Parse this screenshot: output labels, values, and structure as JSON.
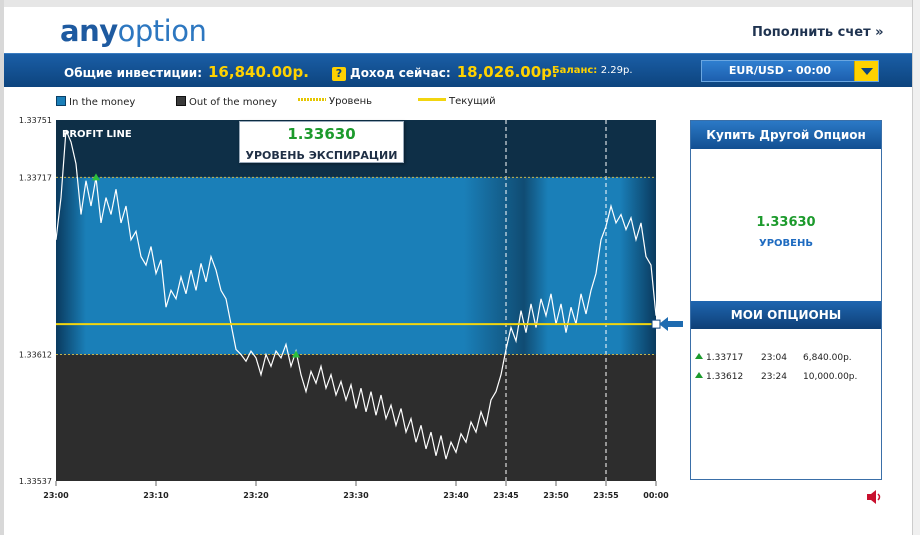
{
  "header": {
    "logo_main": "any",
    "logo_accent": "option",
    "deposit_link": "Пополнить счет »"
  },
  "infobar": {
    "investments_label": "Общие инвестиции:",
    "investments_value": "16,840.00р.",
    "income_label": "Доход сейчас:",
    "income_value": "18,026.00р.",
    "balance_label": "Баланс:",
    "balance_value": "2.29р.",
    "asset_select": "EUR/USD - 00:00"
  },
  "legend": {
    "in_money": "In the money",
    "out_money": "Out of the money",
    "level": "Уровень",
    "current": "Текущий"
  },
  "expiry": {
    "value": "1.33630",
    "label": "УРОВЕНЬ ЭКСПИРАЦИИ"
  },
  "panel": {
    "buy_button": "Купить Другой Опцион",
    "level_value": "1.33630",
    "level_label": "УРОВЕНЬ",
    "my_options_header": "МОИ ОПЦИОНЫ",
    "options": [
      {
        "level": "1.33717",
        "time": "23:04",
        "amount": "6,840.00р."
      },
      {
        "level": "1.33612",
        "time": "23:24",
        "amount": "10,000.00р."
      }
    ]
  },
  "colors": {
    "in_money": "#1a7fb8",
    "out_money": "#2d2d2d",
    "level_line": "#f2d50f",
    "accent_blue": "#124f91",
    "up_green": "#1c9a2c",
    "money_yellow": "#ffd200"
  },
  "chart_data": {
    "type": "line",
    "title": "PROFIT LINE",
    "ylim": [
      1.33537,
      1.33751
    ],
    "y_ticks": [
      "1.33751",
      "1.33717",
      "1.33612",
      "1.33537"
    ],
    "x_ticks": [
      "23:00",
      "23:10",
      "23:20",
      "23:30",
      "23:40",
      "23:45",
      "23:50",
      "23:55",
      "00:00"
    ],
    "current_level": 1.3363,
    "in_money_band": [
      1.33612,
      1.33717
    ],
    "entry_markers": [
      {
        "time": "23:04",
        "level": 1.33717
      },
      {
        "time": "23:24",
        "level": 1.33612
      }
    ],
    "vertical_markers": [
      "23:45",
      "23:55"
    ],
    "series": [
      {
        "x_minutes": [
          0,
          0.5,
          1,
          1.5,
          2,
          2.5,
          3,
          3.5,
          4,
          4.5,
          5,
          5.5,
          6,
          6.5,
          7,
          7.5,
          8,
          8.5,
          9,
          9.5,
          10,
          10.5,
          11,
          11.5,
          12,
          12.5,
          13,
          13.5,
          14,
          14.5,
          15,
          15.5,
          16,
          16.5,
          17,
          17.5,
          18,
          18.5,
          19,
          19.5,
          20,
          20.5,
          21,
          21.5,
          22,
          22.5,
          23,
          23.5,
          24,
          24.5,
          25,
          25.5,
          26,
          26.5,
          27,
          27.5,
          28,
          28.5,
          29,
          29.5,
          30,
          30.5,
          31,
          31.5,
          32,
          32.5,
          33,
          33.5,
          34,
          34.5,
          35,
          35.5,
          36,
          36.5,
          37,
          37.5,
          38,
          38.5,
          39,
          39.5,
          40,
          40.5,
          41,
          41.5,
          42,
          42.5,
          43,
          43.5,
          44,
          44.5,
          45,
          45.5,
          46,
          46.5,
          47,
          47.5,
          48,
          48.5,
          49,
          49.5,
          50,
          50.5,
          51,
          51.5,
          52,
          52.5,
          53,
          53.5,
          54,
          54.5,
          55,
          55.5,
          56,
          56.5,
          57,
          57.5,
          58,
          58.5,
          59,
          59.5,
          60
        ],
        "y": [
          1.3368,
          1.33705,
          1.33745,
          1.33738,
          1.33725,
          1.33695,
          1.33715,
          1.337,
          1.33717,
          1.3369,
          1.33705,
          1.33695,
          1.3371,
          1.3369,
          1.337,
          1.3368,
          1.33685,
          1.3367,
          1.33665,
          1.33676,
          1.3366,
          1.33668,
          1.3364,
          1.3365,
          1.33645,
          1.33658,
          1.33648,
          1.33662,
          1.3365,
          1.33666,
          1.33655,
          1.3367,
          1.33662,
          1.3365,
          1.33645,
          1.3363,
          1.33615,
          1.33612,
          1.33608,
          1.33614,
          1.3361,
          1.336,
          1.33612,
          1.33605,
          1.33614,
          1.3361,
          1.33618,
          1.33605,
          1.33614,
          1.336,
          1.3359,
          1.33602,
          1.33595,
          1.33605,
          1.33592,
          1.336,
          1.33588,
          1.33596,
          1.33585,
          1.33594,
          1.3358,
          1.33592,
          1.33578,
          1.3359,
          1.33576,
          1.33588,
          1.33574,
          1.33582,
          1.3357,
          1.3358,
          1.33566,
          1.33574,
          1.3356,
          1.3357,
          1.33556,
          1.33566,
          1.33552,
          1.33564,
          1.3355,
          1.3356,
          1.33554,
          1.33565,
          1.3356,
          1.33572,
          1.33566,
          1.33578,
          1.3357,
          1.33585,
          1.3359,
          1.336,
          1.33615,
          1.33628,
          1.3362,
          1.33638,
          1.33625,
          1.33642,
          1.33628,
          1.33645,
          1.33635,
          1.33648,
          1.3363,
          1.33642,
          1.33625,
          1.3364,
          1.3363,
          1.33648,
          1.33636,
          1.3365,
          1.3366,
          1.3368,
          1.33688,
          1.337,
          1.3369,
          1.33695,
          1.33686,
          1.33693,
          1.3368,
          1.3369,
          1.3367,
          1.33665,
          1.33635
        ]
      }
    ]
  }
}
